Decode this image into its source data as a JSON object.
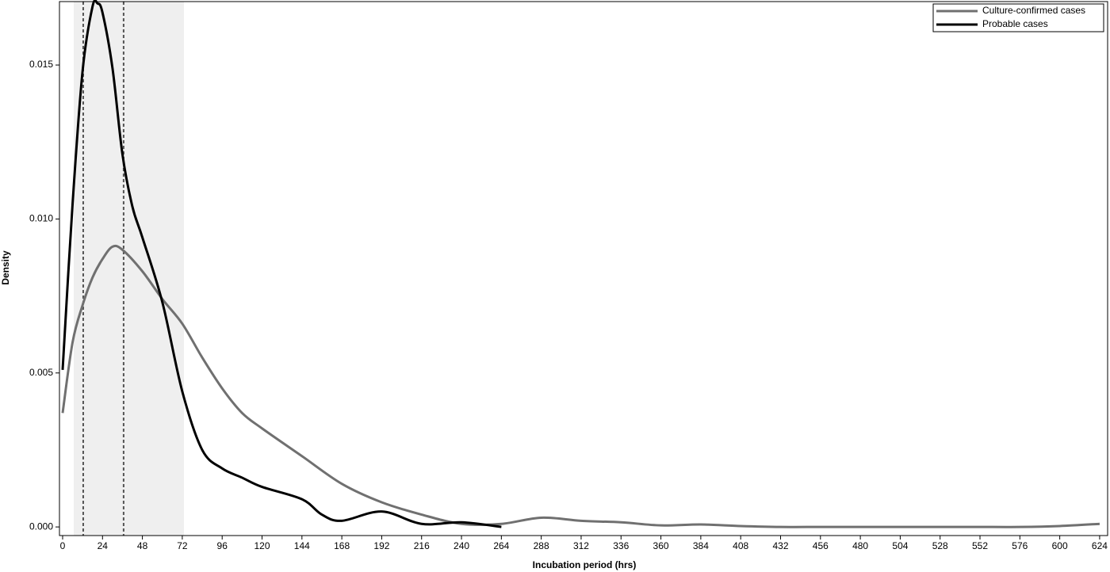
{
  "chart_data": {
    "type": "line",
    "x_label": "Incubation period (hrs)",
    "y_label": "Density",
    "shaded_range": [
      6.7,
      73
    ],
    "reference_lines": [
      12.4,
      36.7
    ],
    "legend": "top-right",
    "series": [
      {
        "name": "Culture-confirmed cases",
        "color": "#707070",
        "x": [
          0,
          6,
          12,
          18,
          24,
          30,
          36,
          48,
          60,
          72,
          84,
          96,
          108,
          120,
          144,
          168,
          192,
          216,
          240,
          264,
          288,
          312,
          336,
          360,
          384,
          408,
          432,
          456,
          480,
          504,
          528,
          552,
          576,
          600,
          624
        ],
        "values": [
          0.0037,
          0.006,
          0.0072,
          0.0081,
          0.0087,
          0.0091,
          0.009,
          0.0083,
          0.0074,
          0.0066,
          0.0055,
          0.0045,
          0.0037,
          0.0032,
          0.0023,
          0.0014,
          0.0008,
          0.0004,
          0.0001,
          0.0001,
          0.0003,
          0.0002,
          0.00015,
          5e-05,
          8e-05,
          3e-05,
          0,
          0,
          0,
          0,
          0,
          0,
          0,
          3e-05,
          0.0001
        ]
      },
      {
        "name": "Probable cases",
        "color": "#000000",
        "x": [
          0,
          6,
          12,
          18,
          21,
          24,
          30,
          36,
          42,
          48,
          60,
          72,
          84,
          96,
          108,
          120,
          144,
          156,
          168,
          192,
          216,
          240,
          264
        ],
        "values": [
          0.0051,
          0.0105,
          0.0148,
          0.0169,
          0.017,
          0.0167,
          0.0149,
          0.0121,
          0.0104,
          0.0094,
          0.0073,
          0.0044,
          0.0025,
          0.0019,
          0.0016,
          0.0013,
          0.0009,
          0.0004,
          0.0002,
          0.0005,
          0.0001,
          0.00015,
          0
        ]
      }
    ],
    "xlim": [
      -1.9,
      628.8
    ],
    "xticks": [
      0,
      24,
      48,
      72,
      96,
      120,
      144,
      168,
      192,
      216,
      240,
      264,
      288,
      312,
      336,
      360,
      384,
      408,
      432,
      456,
      480,
      504,
      528,
      552,
      576,
      600,
      624
    ],
    "ylim": [
      -0.00028,
      0.01706
    ],
    "yticks": [
      {
        "value": 0,
        "label": "0.000"
      },
      0.005,
      {
        "value": 0.01,
        "label": "0.010"
      },
      0.015
    ]
  }
}
